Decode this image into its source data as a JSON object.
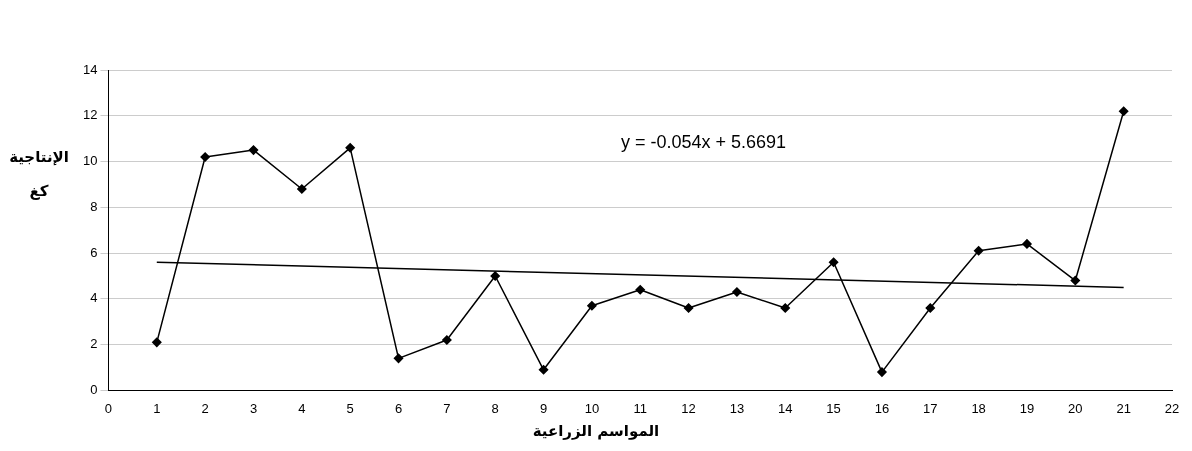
{
  "chart_data": {
    "type": "line",
    "xlabel": "المواسم الزراعية",
    "ylabel": "الإنتاجية كغ",
    "x": [
      1,
      2,
      3,
      4,
      5,
      6,
      7,
      8,
      9,
      10,
      11,
      12,
      13,
      14,
      15,
      16,
      17,
      18,
      19,
      20,
      21
    ],
    "series": [
      {
        "color": "#000000",
        "marker": "diamond",
        "values": [
          2.1,
          10.2,
          10.5,
          8.8,
          10.6,
          1.4,
          2.2,
          5.0,
          0.9,
          3.7,
          4.4,
          3.6,
          4.3,
          3.6,
          5.6,
          0.8,
          3.6,
          6.1,
          6.4,
          4.8,
          12.2
        ]
      },
      {
        "type": "line",
        "color": "#000000",
        "marker": "none",
        "x": [
          1,
          21
        ],
        "values": [
          5.6,
          4.5
        ]
      }
    ],
    "annotations": [
      "y = -0.054x + 5.6691"
    ],
    "xlim": [
      0,
      22
    ],
    "xticks": [
      0,
      1,
      2,
      3,
      4,
      5,
      6,
      7,
      8,
      9,
      10,
      11,
      12,
      13,
      14,
      15,
      16,
      17,
      18,
      19,
      20,
      21,
      22
    ],
    "ylim": [
      0,
      14
    ],
    "yticks": [
      0,
      2,
      4,
      6,
      8,
      10,
      12,
      14
    ],
    "grid": "y",
    "legend": false,
    "line_style": "solid"
  }
}
